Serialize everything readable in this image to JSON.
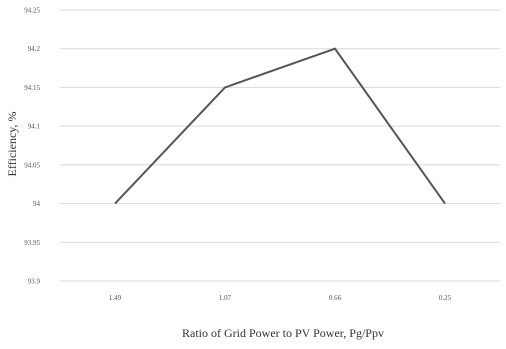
{
  "chart_data": {
    "type": "line",
    "categories": [
      "1.49",
      "1.07",
      "0.66",
      "0.25"
    ],
    "series": [
      {
        "values": [
          94.0,
          94.15,
          94.2,
          94.0
        ]
      }
    ],
    "xlabel": "Ratio of Grid Power to PV Power, Pg/Ppv",
    "ylabel": "Efficiency, %",
    "ylim": [
      93.9,
      94.25
    ],
    "yticks": [
      "93.9",
      "93.95",
      "94",
      "94.05",
      "94.1",
      "94.15",
      "94.2",
      "94.25"
    ],
    "grid": true,
    "line_color": "#555555"
  }
}
